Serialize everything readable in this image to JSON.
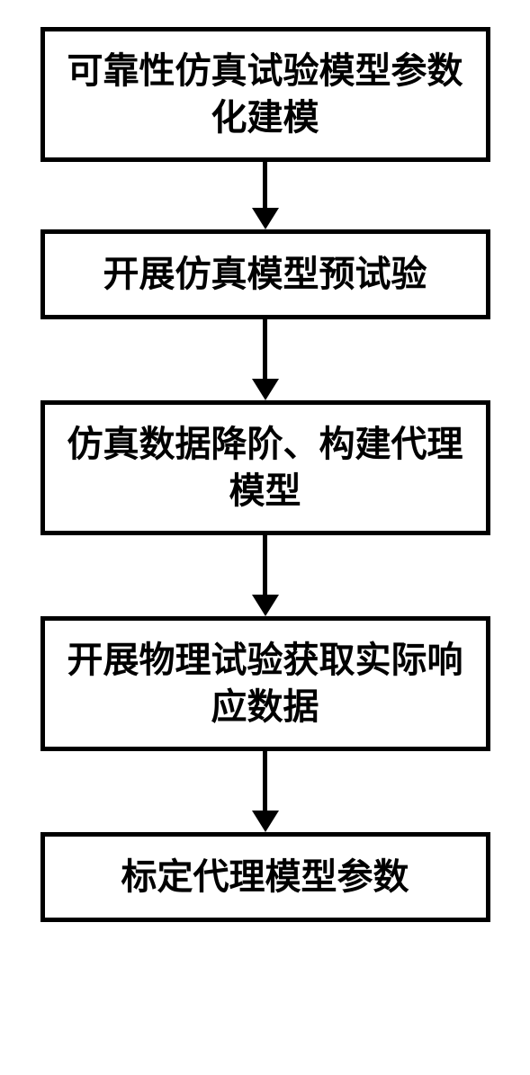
{
  "flowchart": {
    "type": "flowchart",
    "direction": "vertical",
    "background_color": "#ffffff",
    "node_border_color": "#000000",
    "node_border_width": 5,
    "node_background_color": "#ffffff",
    "text_color": "#000000",
    "font_size": 40,
    "font_weight": "bold",
    "arrow_color": "#000000",
    "arrow_line_width": 5,
    "nodes": [
      {
        "id": "node1",
        "label": "可靠性仿真试验模型参数化建模",
        "lines": 2
      },
      {
        "id": "node2",
        "label": "开展仿真模型预试验",
        "lines": 1
      },
      {
        "id": "node3",
        "label": "仿真数据降阶、构建代理模型",
        "lines": 2
      },
      {
        "id": "node4",
        "label": "开展物理试验获取实际响应数据",
        "lines": 2
      },
      {
        "id": "node5",
        "label": "标定代理模型参数",
        "lines": 1
      }
    ],
    "edges": [
      {
        "from": "node1",
        "to": "node2"
      },
      {
        "from": "node2",
        "to": "node3"
      },
      {
        "from": "node3",
        "to": "node4"
      },
      {
        "from": "node4",
        "to": "node5"
      }
    ]
  }
}
